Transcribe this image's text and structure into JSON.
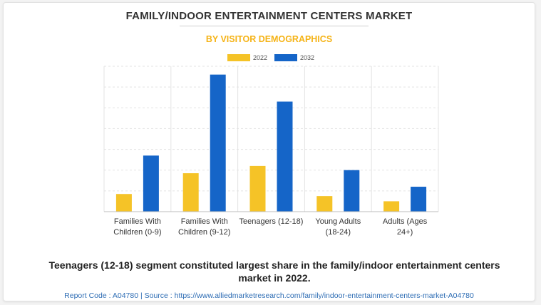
{
  "title": "FAMILY/INDOOR ENTERTAINMENT CENTERS MARKET",
  "subtitle": "BY VISITOR DEMOGRAPHICS",
  "caption": "Teenagers (12-18) segment constituted largest share in the family/indoor entertainment centers market in 2022.",
  "footer": "Report Code : A04780  |  Source : https://www.alliedmarketresearch.com/family/indoor-entertainment-centers-market-A04780",
  "colors": {
    "series_2022": "#f5c327",
    "series_2032": "#1565c8",
    "subtitle": "#f5b316",
    "footer": "#2e6db4"
  },
  "chart_data": {
    "type": "bar",
    "categories": [
      [
        "Families With",
        "Children (0-9)"
      ],
      [
        "Families With",
        "Children (9-12)"
      ],
      [
        "Teenagers (12-18)"
      ],
      [
        "Young Adults",
        "(18-24)"
      ],
      [
        "Adults (Ages",
        "24+)"
      ]
    ],
    "series": [
      {
        "name": "2022",
        "values": [
          0.85,
          1.85,
          2.2,
          0.75,
          0.5
        ]
      },
      {
        "name": "2032",
        "values": [
          2.7,
          6.6,
          5.3,
          2.0,
          1.2
        ]
      }
    ],
    "ylim": [
      0,
      7
    ],
    "grid": true,
    "legend_position": "top-center"
  }
}
